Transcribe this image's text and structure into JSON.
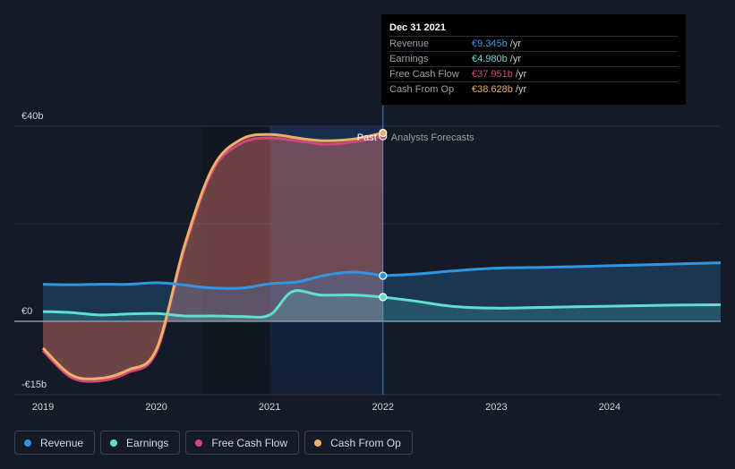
{
  "chart_data": {
    "type": "area",
    "x_ticks": [
      "2019",
      "2020",
      "2021",
      "2022",
      "2023",
      "2024"
    ],
    "y_ticks": [
      {
        "value": 40,
        "label": "€40b"
      },
      {
        "value": 0,
        "label": "€0"
      },
      {
        "value": -15,
        "label": "-€15b"
      }
    ],
    "ylim": [
      -15,
      40
    ],
    "xlim": [
      2019.0,
      2024.98
    ],
    "split_x": 2022.0,
    "past_label": "Past",
    "forecast_label": "Analysts Forecasts",
    "series": [
      {
        "name": "Revenue",
        "color": "#2f96e6",
        "values": [
          [
            2019.0,
            7.6
          ],
          [
            2019.25,
            7.5
          ],
          [
            2019.5,
            7.6
          ],
          [
            2019.75,
            7.6
          ],
          [
            2020.0,
            7.9
          ],
          [
            2020.2,
            7.6
          ],
          [
            2020.45,
            6.9
          ],
          [
            2020.75,
            6.8
          ],
          [
            2021.0,
            7.7
          ],
          [
            2021.25,
            8.1
          ],
          [
            2021.5,
            9.5
          ],
          [
            2021.75,
            10.1
          ],
          [
            2022.0,
            9.345
          ]
        ],
        "forecast": [
          [
            2022.0,
            9.345
          ],
          [
            2022.3,
            9.7
          ],
          [
            2022.6,
            10.3
          ],
          [
            2023.0,
            10.9
          ],
          [
            2023.5,
            11.1
          ],
          [
            2024.0,
            11.4
          ],
          [
            2024.5,
            11.7
          ],
          [
            2024.98,
            12.0
          ]
        ]
      },
      {
        "name": "Earnings",
        "color": "#5ee0cf",
        "values": [
          [
            2019.0,
            2.0
          ],
          [
            2019.25,
            1.8
          ],
          [
            2019.5,
            1.3
          ],
          [
            2019.75,
            1.5
          ],
          [
            2020.0,
            1.6
          ],
          [
            2020.25,
            1.1
          ],
          [
            2020.5,
            1.1
          ],
          [
            2020.75,
            1.0
          ],
          [
            2021.0,
            1.3
          ],
          [
            2021.2,
            6.1
          ],
          [
            2021.45,
            5.4
          ],
          [
            2021.75,
            5.4
          ],
          [
            2022.0,
            4.98
          ]
        ],
        "forecast": [
          [
            2022.0,
            4.98
          ],
          [
            2022.3,
            4.1
          ],
          [
            2022.6,
            3.1
          ],
          [
            2023.0,
            2.7
          ],
          [
            2023.5,
            2.9
          ],
          [
            2024.0,
            3.1
          ],
          [
            2024.5,
            3.3
          ],
          [
            2024.98,
            3.4
          ]
        ]
      },
      {
        "name": "Free Cash Flow",
        "color": "#d4457f",
        "values": [
          [
            2019.0,
            -6.0
          ],
          [
            2019.25,
            -11.5
          ],
          [
            2019.5,
            -12.2
          ],
          [
            2019.75,
            -10.5
          ],
          [
            2020.0,
            -6.3
          ],
          [
            2020.25,
            15.0
          ],
          [
            2020.5,
            31.0
          ],
          [
            2020.75,
            36.5
          ],
          [
            2021.0,
            37.6
          ],
          [
            2021.3,
            36.8
          ],
          [
            2021.5,
            36.3
          ],
          [
            2021.75,
            36.8
          ],
          [
            2022.0,
            37.951
          ]
        ]
      },
      {
        "name": "Cash From Op",
        "color": "#eeb066",
        "values": [
          [
            2019.0,
            -5.5
          ],
          [
            2019.25,
            -11.0
          ],
          [
            2019.5,
            -11.7
          ],
          [
            2019.75,
            -10.0
          ],
          [
            2020.0,
            -5.8
          ],
          [
            2020.25,
            15.6
          ],
          [
            2020.5,
            31.6
          ],
          [
            2020.75,
            37.3
          ],
          [
            2021.0,
            38.3
          ],
          [
            2021.3,
            37.4
          ],
          [
            2021.5,
            37.0
          ],
          [
            2021.75,
            37.4
          ],
          [
            2022.0,
            38.628
          ]
        ]
      }
    ]
  },
  "tooltip": {
    "date": "Dec 31 2021",
    "rows": [
      {
        "label": "Revenue",
        "value": "€9.345b",
        "unit": "/yr",
        "color": "#2f96e6"
      },
      {
        "label": "Earnings",
        "value": "€4.980b",
        "unit": "/yr",
        "color": "#5ee0cf"
      },
      {
        "label": "Free Cash Flow",
        "value": "€37.951b",
        "unit": "/yr",
        "color": "#d4457f"
      },
      {
        "label": "Cash From Op",
        "value": "€38.628b",
        "unit": "/yr",
        "color": "#eeb066"
      }
    ]
  },
  "legend": [
    {
      "label": "Revenue",
      "color": "#2f96e6"
    },
    {
      "label": "Earnings",
      "color": "#5ee0cf"
    },
    {
      "label": "Free Cash Flow",
      "color": "#d4457f"
    },
    {
      "label": "Cash From Op",
      "color": "#eeb066"
    }
  ]
}
